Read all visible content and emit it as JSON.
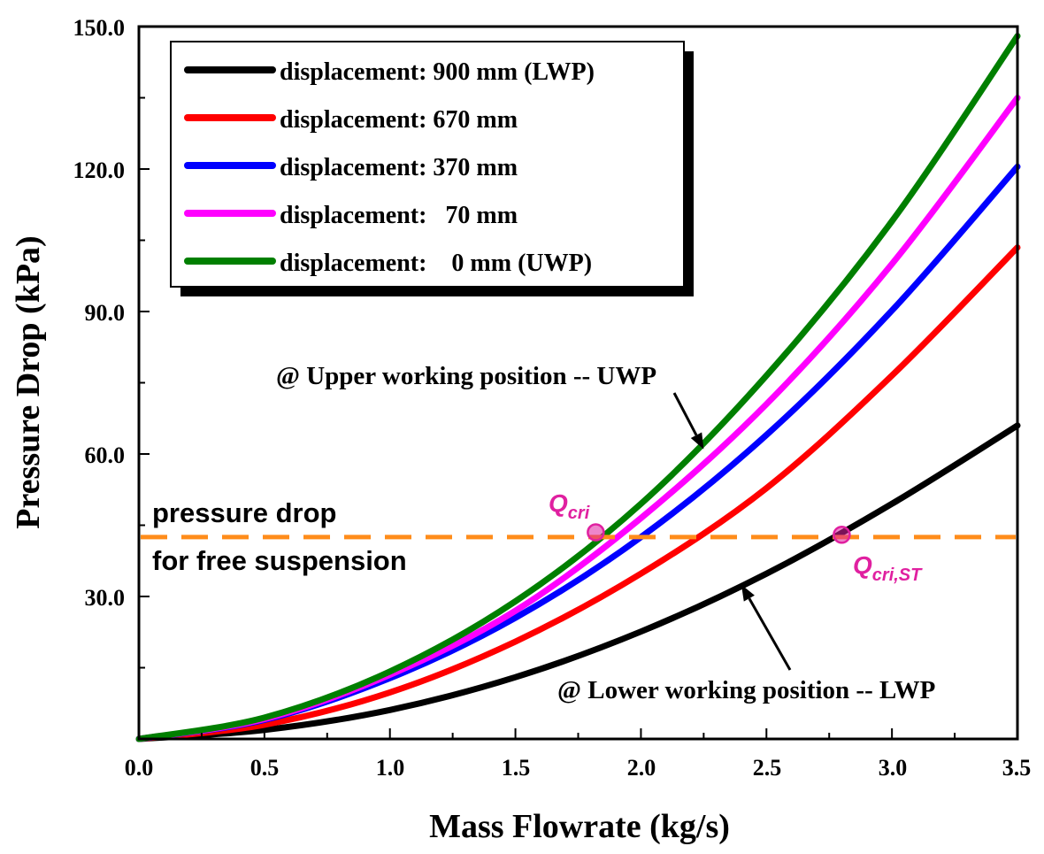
{
  "chart_data": {
    "type": "line",
    "title": "",
    "xlabel": "Mass Flowrate (kg/s)",
    "ylabel": "Pressure Drop (kPa)",
    "xlim": [
      0.0,
      3.5
    ],
    "ylim": [
      0.0,
      150.0
    ],
    "x_ticks": [
      "0.0",
      "0.5",
      "1.0",
      "1.5",
      "2.0",
      "2.5",
      "3.0",
      "3.5"
    ],
    "y_ticks": [
      "30.0",
      "60.0",
      "90.0",
      "120.0",
      "150.0"
    ],
    "grid": false,
    "legend_position": "top-left",
    "series": [
      {
        "name": "displacement: 900 mm (LWP)",
        "label": "displacement: 900 mm (LWP)",
        "color": "#000000",
        "x": [
          0,
          0.5,
          1.0,
          1.5,
          2.0,
          2.5,
          3.0,
          3.5
        ],
        "y": [
          0,
          1.9,
          6.1,
          13.0,
          22.6,
          34.8,
          49.5,
          66.0
        ]
      },
      {
        "name": "displacement: 670 mm",
        "label": "displacement: 670 mm",
        "color": "#ff0000",
        "x": [
          0,
          0.5,
          1.0,
          1.5,
          2.0,
          2.5,
          3.0,
          3.5
        ],
        "y": [
          0,
          3.0,
          9.8,
          20.5,
          34.8,
          52.8,
          76.5,
          103.5
        ]
      },
      {
        "name": "displacement: 370 mm",
        "label": "displacement: 370 mm",
        "color": "#0000ff",
        "x": [
          0,
          0.5,
          1.0,
          1.5,
          2.0,
          2.5,
          3.0,
          3.5
        ],
        "y": [
          0,
          4.0,
          12.8,
          25.5,
          42.5,
          64.0,
          90.2,
          120.5
        ]
      },
      {
        "name": "displacement: 70 mm",
        "label": "displacement:   70 mm",
        "color": "#ff00ff",
        "x": [
          0,
          0.5,
          1.0,
          1.5,
          2.0,
          2.5,
          3.0,
          3.5
        ],
        "y": [
          0,
          4.2,
          13.5,
          27.0,
          46.5,
          70.5,
          100.0,
          135.0
        ]
      },
      {
        "name": "displacement: 0 mm (UWP)",
        "label": "displacement:    0 mm (UWP)",
        "color": "#007f00",
        "x": [
          0,
          0.5,
          1.0,
          1.5,
          2.0,
          2.5,
          3.0,
          3.5
        ],
        "y": [
          0,
          4.5,
          14.2,
          29.0,
          49.5,
          76.5,
          109.0,
          148.0
        ]
      }
    ],
    "reference_line": {
      "label_line1": "pressure drop",
      "label_line2": "for free suspension",
      "y": 42.5,
      "color": "#ff8c1a",
      "style": "dashed"
    },
    "markers": [
      {
        "label": "Q",
        "subscript": "cri",
        "x": 1.82,
        "y": 43.5,
        "color": "#e020a0"
      },
      {
        "label": "Q",
        "subscript": "cri,ST",
        "x": 2.8,
        "y": 43.0,
        "color": "#e020a0"
      }
    ],
    "annotations": [
      {
        "text": "@ Upper working position -- UWP",
        "arrow_to_x": 2.25,
        "arrow_to_y": 61.0
      },
      {
        "text": "@ Lower working position -- LWP",
        "arrow_to_x": 2.4,
        "arrow_to_y": 32.5
      }
    ]
  }
}
